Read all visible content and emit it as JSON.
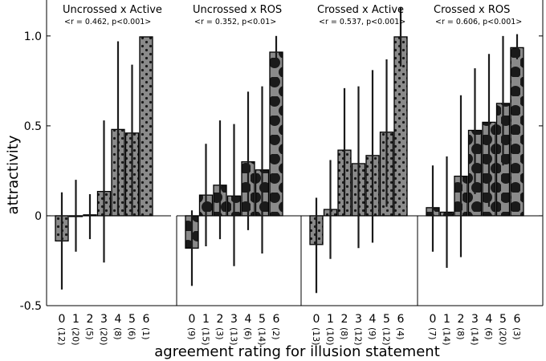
{
  "chart_data": {
    "type": "bar",
    "ylabel": "attractivity",
    "xlabel": "agreement rating for illusion statement",
    "ylim": [
      -0.5,
      1.2
    ],
    "yticks": [
      -0.5,
      0,
      0.5,
      1.0
    ],
    "ytick_labels": [
      "-0.5",
      "0",
      "0.5",
      "1.0"
    ],
    "categories": [
      "0",
      "1",
      "2",
      "3",
      "4",
      "5",
      "6"
    ],
    "panels": [
      {
        "title": "Uncrossed x Active",
        "stats": "<r = 0.462, p<0.001>",
        "bar_color": "#ffffff",
        "pattern": "small-dots-dark",
        "values": [
          -0.14,
          0.0,
          0.005,
          0.135,
          0.48,
          0.46,
          0.995
        ],
        "err_low": [
          -0.41,
          -0.2,
          -0.13,
          -0.26,
          0.0,
          0.0,
          null
        ],
        "err_high": [
          0.13,
          0.2,
          0.12,
          0.53,
          0.97,
          0.84,
          null
        ],
        "n": [
          "(12)",
          "(20)",
          "(5)",
          "(20)",
          "(8)",
          "(6)",
          "(1)"
        ]
      },
      {
        "title": "Uncrossed x ROS",
        "stats": "<r = 0.352, p<0.01>",
        "bar_color": "#ffffff",
        "pattern": "large-dots-dark",
        "values": [
          -0.18,
          0.115,
          0.17,
          0.11,
          0.3,
          0.255,
          0.91
        ],
        "err_low": [
          -0.39,
          -0.17,
          -0.13,
          -0.28,
          -0.08,
          -0.21,
          0.83
        ],
        "err_high": [
          0.03,
          0.4,
          0.53,
          0.51,
          0.69,
          0.72,
          1.0
        ],
        "n": [
          "(9)",
          "(15)",
          "(3)",
          "(13)",
          "(6)",
          "(14)",
          "(2)"
        ]
      },
      {
        "title": "Crossed x Active",
        "stats": "<r = 0.537, p<0.001>",
        "bar_color": "#8a8a8a",
        "pattern": "small-dots-dark",
        "values": [
          -0.16,
          0.035,
          0.365,
          0.29,
          0.335,
          0.465,
          0.995
        ],
        "err_low": [
          -0.43,
          -0.24,
          0.0,
          -0.18,
          -0.15,
          0.05,
          0.83
        ],
        "err_high": [
          0.1,
          0.31,
          0.71,
          0.72,
          0.81,
          0.87,
          1.16
        ],
        "n": [
          "(13)",
          "(10)",
          "(8)",
          "(12)",
          "(9)",
          "(12)",
          "(4)"
        ]
      },
      {
        "title": "Crossed x ROS",
        "stats": "<r = 0.606, p<0.001>",
        "bar_color": "#8a8a8a",
        "pattern": "large-dots-dark",
        "values": [
          0.045,
          0.02,
          0.22,
          0.475,
          0.52,
          0.625,
          0.935
        ],
        "err_low": [
          -0.2,
          -0.29,
          -0.23,
          0.12,
          0.05,
          0.28,
          0.87
        ],
        "err_high": [
          0.28,
          0.33,
          0.67,
          0.82,
          0.9,
          1.0,
          1.01
        ],
        "n": [
          "(7)",
          "(14)",
          "(8)",
          "(14)",
          "(6)",
          "(20)",
          "(3)"
        ]
      }
    ]
  }
}
